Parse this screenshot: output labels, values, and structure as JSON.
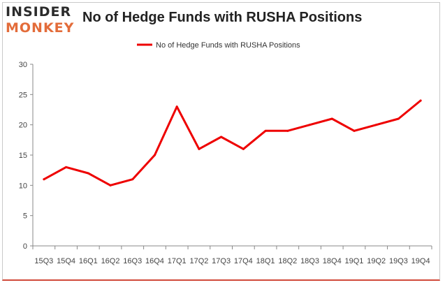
{
  "logo": {
    "line1": "INSIDER",
    "line2": "MONKEY"
  },
  "chart_data": {
    "type": "line",
    "title": "No of Hedge Funds with RUSHA Positions",
    "categories": [
      "15Q3",
      "15Q4",
      "16Q1",
      "16Q2",
      "16Q3",
      "16Q4",
      "17Q1",
      "17Q2",
      "17Q3",
      "17Q4",
      "18Q1",
      "18Q2",
      "18Q3",
      "18Q4",
      "19Q1",
      "19Q2",
      "19Q3",
      "19Q4"
    ],
    "series": [
      {
        "name": "No of Hedge Funds with RUSHA Positions",
        "values": [
          11,
          13,
          12,
          10,
          11,
          15,
          23,
          16,
          18,
          16,
          19,
          19,
          20,
          21,
          19,
          20,
          21,
          24
        ],
        "color": "#ee0000"
      }
    ],
    "ylim": [
      0,
      30
    ],
    "yticks": [
      0,
      5,
      10,
      15,
      20,
      25,
      30
    ],
    "legend_position": "top",
    "grid": false
  }
}
